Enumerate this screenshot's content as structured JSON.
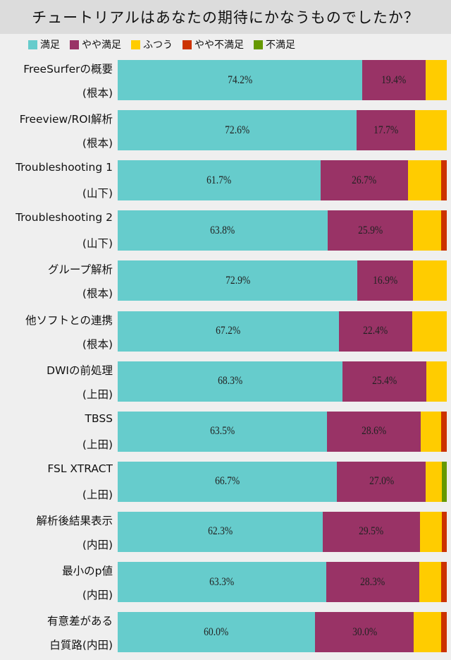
{
  "chart_data": {
    "type": "bar",
    "orientation": "horizontal-stacked-100",
    "title": "チュートリアルはあなたの期待にかなうものでしたか？",
    "legend_placement": "top",
    "series": [
      {
        "name": "満足",
        "color": "#66cccc",
        "values": [
          74.2,
          72.6,
          61.7,
          63.8,
          72.9,
          67.2,
          68.3,
          63.5,
          66.7,
          62.3,
          63.3,
          60.0
        ]
      },
      {
        "name": "やや満足",
        "color": "#993366",
        "values": [
          19.4,
          17.7,
          26.7,
          25.9,
          16.9,
          22.4,
          25.4,
          28.6,
          27.0,
          29.5,
          28.3,
          30.0
        ]
      },
      {
        "name": "ふつう",
        "color": "#ffcc00",
        "values": [
          6.4,
          9.7,
          10.0,
          8.6,
          10.2,
          10.4,
          6.3,
          6.3,
          4.8,
          6.6,
          6.7,
          8.3
        ]
      },
      {
        "name": "やや不満足",
        "color": "#cc3300",
        "values": [
          0,
          0,
          1.7,
          1.7,
          0,
          0,
          0,
          1.6,
          0,
          1.6,
          1.7,
          1.7
        ]
      },
      {
        "name": "不満足",
        "color": "#669900",
        "values": [
          0,
          0,
          0,
          0,
          0,
          0,
          0,
          0,
          1.6,
          0,
          0,
          0
        ]
      }
    ],
    "categories": [
      [
        "FreeSurferの概要",
        "(根本)"
      ],
      [
        "Freeview/ROI解析",
        "(根本)"
      ],
      [
        "Troubleshooting 1",
        "(山下)"
      ],
      [
        "Troubleshooting 2",
        "(山下)"
      ],
      [
        "グループ解析",
        "(根本)"
      ],
      [
        "他ソフトとの連携",
        "(根本)"
      ],
      [
        "DWIの前処理",
        "(上田)"
      ],
      [
        "TBSS",
        "(上田)"
      ],
      [
        "FSL XTRACT",
        "(上田)"
      ],
      [
        "解析後結果表示",
        "(内田)"
      ],
      [
        "最小のp値",
        "(内田)"
      ],
      [
        "有意差がある",
        "白質路(内田)"
      ]
    ],
    "labeled_series": [
      0,
      1
    ],
    "xlim": [
      0,
      100
    ],
    "grid": false
  }
}
